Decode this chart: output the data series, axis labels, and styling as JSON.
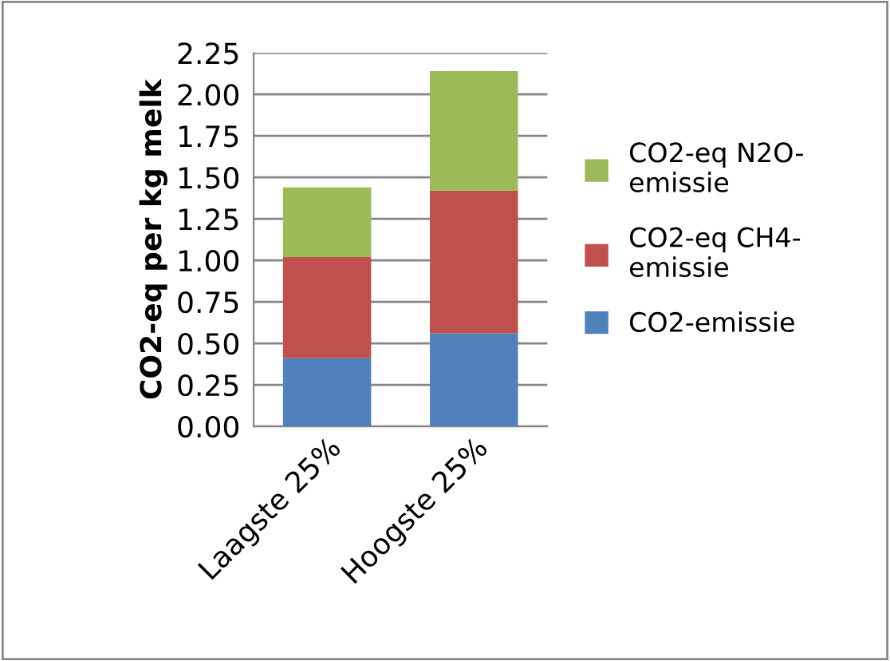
{
  "chart_data": {
    "type": "bar",
    "stacked": true,
    "ylabel": "CO2-eq per kg melk",
    "categories": [
      "Laagste 25%",
      "Hoogste 25%"
    ],
    "series": [
      {
        "name": "CO2-emissie",
        "color": "#4f81bd",
        "values": [
          0.41,
          0.56
        ]
      },
      {
        "name": "CO2-eq CH4-emissie",
        "color": "#c0504d",
        "values": [
          0.61,
          0.86
        ]
      },
      {
        "name": "CO2-eq N2O-emissie",
        "color": "#9bbb59",
        "values": [
          0.42,
          0.72
        ]
      }
    ],
    "ylim": [
      0,
      2.25
    ],
    "yticks": [
      {
        "value": 0,
        "label": "0.00"
      },
      {
        "value": 0.25,
        "label": "0.25"
      },
      {
        "value": 0.5,
        "label": "0.50"
      },
      {
        "value": 0.75,
        "label": "0.75"
      },
      {
        "value": 1,
        "label": "1.00"
      },
      {
        "value": 1.25,
        "label": "1.25"
      },
      {
        "value": 1.5,
        "label": "1.50"
      },
      {
        "value": 1.75,
        "label": "1.75"
      },
      {
        "value": 2,
        "label": "2.00"
      },
      {
        "value": 2.25,
        "label": "2.25"
      }
    ],
    "grid": "y",
    "legend": "right"
  }
}
